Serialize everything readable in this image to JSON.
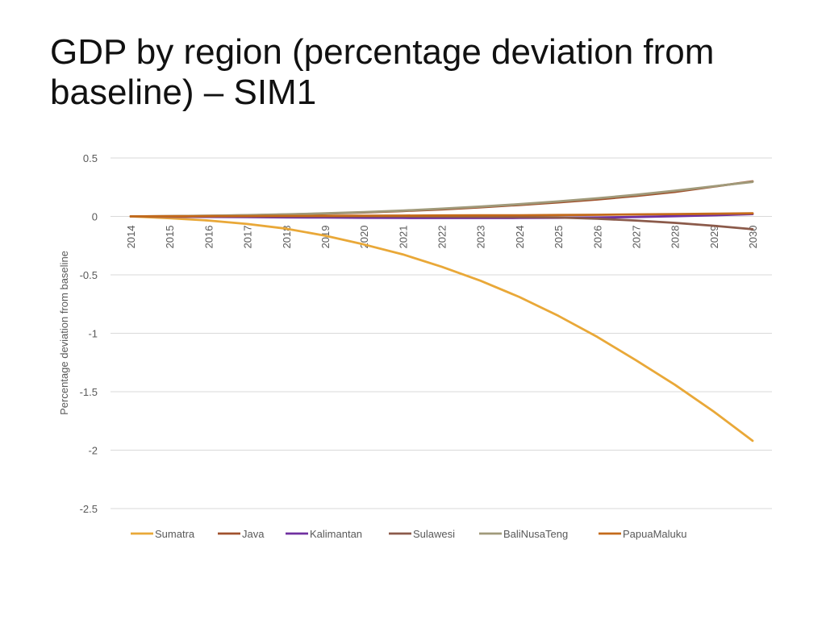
{
  "slide": {
    "title": "GDP by region (percentage deviation from baseline) – SIM1"
  },
  "chart_data": {
    "type": "line",
    "title": "",
    "xlabel": "",
    "ylabel": "Percentage deviation from baseline",
    "ylim": [
      -2.5,
      0.5
    ],
    "yticks": [
      0.5,
      0,
      -0.5,
      -1,
      -1.5,
      -2,
      -2.5
    ],
    "ytick_labels": [
      "0.5",
      "0",
      "-0.5",
      "-1",
      "-1.5",
      "-2",
      "-2.5"
    ],
    "grid": true,
    "legend_position": "bottom",
    "x": [
      "2014",
      "2015",
      "2016",
      "2017",
      "2018",
      "2019",
      "2020",
      "2021",
      "2022",
      "2023",
      "2024",
      "2025",
      "2026",
      "2027",
      "2028",
      "2029",
      "2030"
    ],
    "series": [
      {
        "name": "Sumatra",
        "color": "#E9A838",
        "values": [
          0,
          -0.015,
          -0.035,
          -0.065,
          -0.105,
          -0.165,
          -0.24,
          -0.325,
          -0.43,
          -0.55,
          -0.69,
          -0.85,
          -1.03,
          -1.23,
          -1.44,
          -1.67,
          -1.92
        ]
      },
      {
        "name": "Java",
        "color": "#A0522D",
        "values": [
          0,
          0.002,
          0.005,
          0.01,
          0.016,
          0.024,
          0.034,
          0.046,
          0.06,
          0.078,
          0.098,
          0.12,
          0.145,
          0.175,
          0.21,
          0.255,
          0.3
        ]
      },
      {
        "name": "Kalimantan",
        "color": "#7030A0",
        "values": [
          0,
          -0.002,
          -0.004,
          -0.006,
          -0.008,
          -0.01,
          -0.012,
          -0.013,
          -0.014,
          -0.014,
          -0.013,
          -0.012,
          -0.01,
          -0.005,
          0.002,
          0.01,
          0.02
        ]
      },
      {
        "name": "Sulawesi",
        "color": "#8B5A4A",
        "values": [
          0,
          0.001,
          0.002,
          0.002,
          0.002,
          0.002,
          0.001,
          0,
          -0.002,
          -0.004,
          -0.006,
          -0.01,
          -0.02,
          -0.035,
          -0.055,
          -0.08,
          -0.11
        ]
      },
      {
        "name": "BaliNusaTeng",
        "color": "#A09A7A",
        "values": [
          0,
          0.003,
          0.006,
          0.011,
          0.018,
          0.026,
          0.037,
          0.05,
          0.066,
          0.084,
          0.105,
          0.128,
          0.155,
          0.185,
          0.22,
          0.258,
          0.295
        ]
      },
      {
        "name": "PapuaMaluku",
        "color": "#C46A1A",
        "values": [
          0,
          0.001,
          0.002,
          0.003,
          0.004,
          0.005,
          0.006,
          0.007,
          0.008,
          0.009,
          0.01,
          0.012,
          0.014,
          0.017,
          0.02,
          0.023,
          0.026
        ]
      }
    ]
  }
}
